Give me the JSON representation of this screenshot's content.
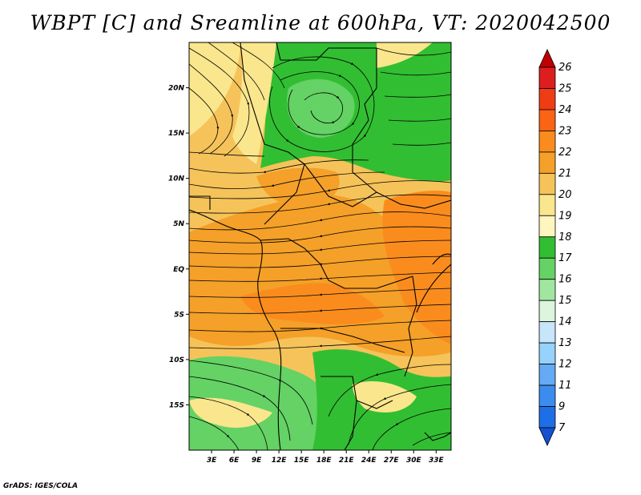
{
  "title": "WBPT [C] and Sreamline at 600hPa, VT: 2020042500",
  "credit": "GrADS: IGES/COLA",
  "map": {
    "lat_range": [
      -20,
      25
    ],
    "lon_range": [
      0,
      35
    ],
    "lat_ticks": [
      {
        "value": 20,
        "label": "20N"
      },
      {
        "value": 15,
        "label": "15N"
      },
      {
        "value": 10,
        "label": "10N"
      },
      {
        "value": 5,
        "label": "5N"
      },
      {
        "value": 0,
        "label": "EQ"
      },
      {
        "value": -5,
        "label": "5S"
      },
      {
        "value": -10,
        "label": "10S"
      },
      {
        "value": -15,
        "label": "15S"
      }
    ],
    "lon_ticks": [
      {
        "value": 3,
        "label": "3E"
      },
      {
        "value": 6,
        "label": "6E"
      },
      {
        "value": 9,
        "label": "9E"
      },
      {
        "value": 12,
        "label": "12E"
      },
      {
        "value": 15,
        "label": "15E"
      },
      {
        "value": 18,
        "label": "18E"
      },
      {
        "value": 21,
        "label": "21E"
      },
      {
        "value": 24,
        "label": "24E"
      },
      {
        "value": 27,
        "label": "27E"
      },
      {
        "value": 30,
        "label": "30E"
      },
      {
        "value": 33,
        "label": "33E"
      }
    ]
  },
  "colorbar": {
    "levels": [
      "26",
      "25",
      "24",
      "23",
      "22",
      "21",
      "20",
      "19",
      "18",
      "17",
      "16",
      "15",
      "14",
      "13",
      "12",
      "11",
      "9",
      "7"
    ],
    "colors": [
      "#c00000",
      "#dc1e1e",
      "#f03c14",
      "#fa6414",
      "#fa8c1e",
      "#f5a028",
      "#f5c35a",
      "#fae68c",
      "#fff5be",
      "#32be32",
      "#64d264",
      "#a0e6a0",
      "#dcf5dc",
      "#c8e6fa",
      "#96d2fa",
      "#64aaf5",
      "#3c8cf0",
      "#1e6ee6",
      "#1450d2"
    ]
  }
}
